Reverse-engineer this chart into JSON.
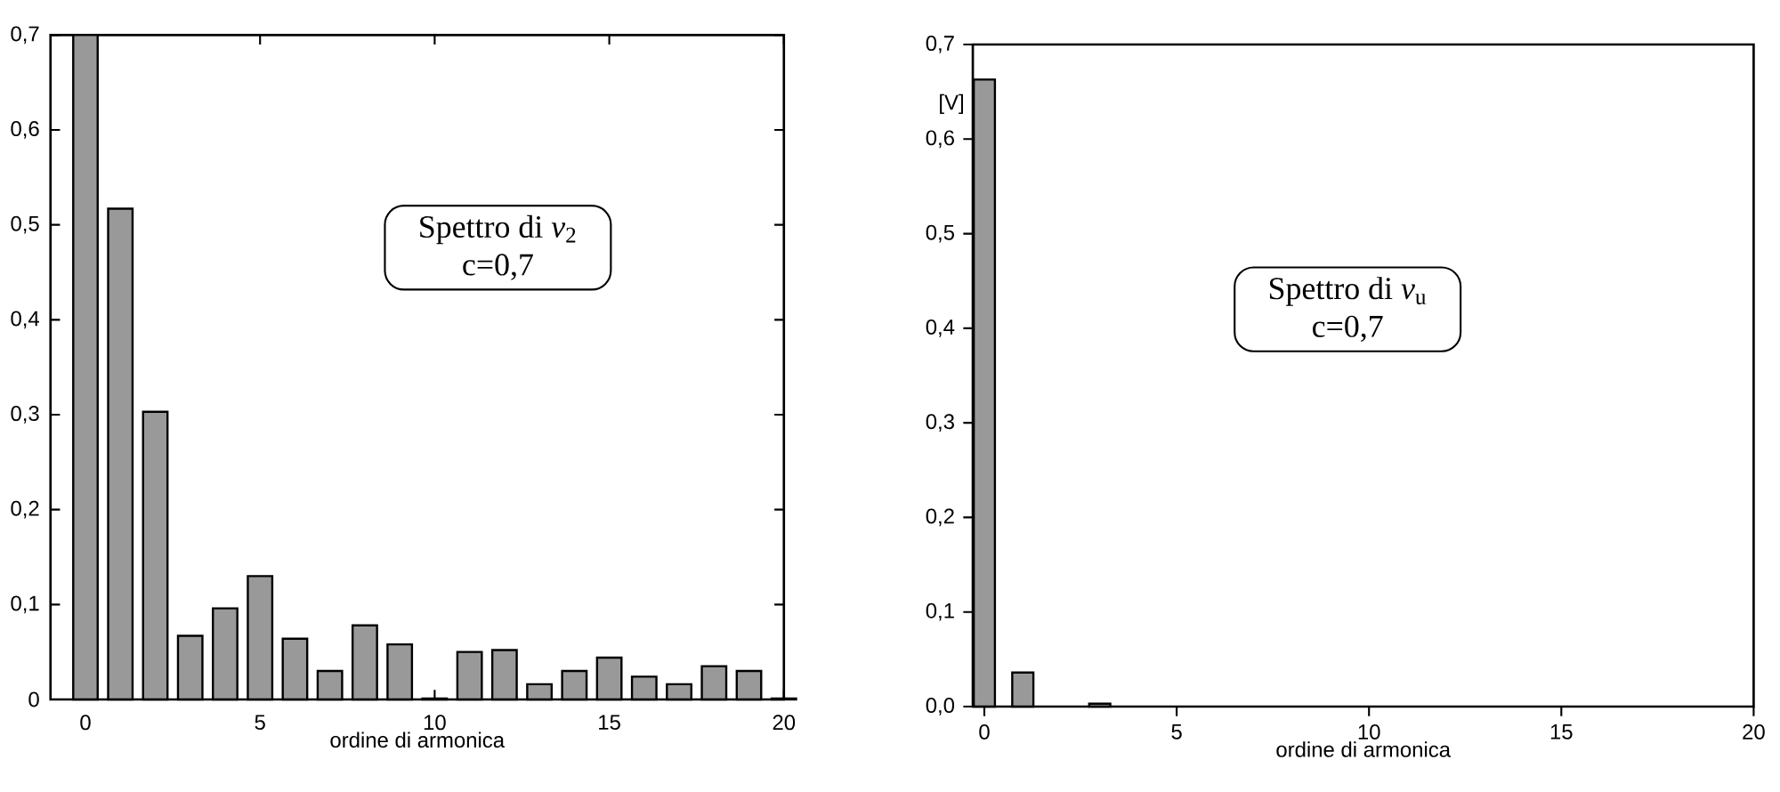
{
  "chart_data": [
    {
      "type": "bar",
      "x": [
        0,
        1,
        2,
        3,
        4,
        5,
        6,
        7,
        8,
        9,
        10,
        11,
        12,
        13,
        14,
        15,
        16,
        17,
        18,
        19,
        20
      ],
      "values": [
        0.7,
        0.517,
        0.303,
        0.067,
        0.096,
        0.13,
        0.064,
        0.03,
        0.078,
        0.058,
        0.001,
        0.05,
        0.052,
        0.016,
        0.03,
        0.044,
        0.024,
        0.016,
        0.035,
        0.03,
        0.001
      ],
      "color": "#999999",
      "xlim": [
        -1,
        20
      ],
      "ylim": [
        0,
        0.7
      ],
      "xticks": [
        0,
        5,
        10,
        15,
        20
      ],
      "yticks": [
        0,
        {
          "value": 0.1,
          "label": "0,1"
        },
        {
          "value": 0.2,
          "label": "0,2"
        },
        {
          "value": 0.3,
          "label": "0,3"
        },
        {
          "value": 0.4,
          "label": "0,4"
        },
        {
          "value": 0.5,
          "label": "0,5"
        },
        {
          "value": 0.6,
          "label": "0,6"
        },
        {
          "value": 0.7,
          "label": "0,7"
        }
      ],
      "xlabel": "ordine di armonica",
      "annotations": [
        "Spettro di *v*$_{2}$",
        "c=0,7"
      ]
    },
    {
      "type": "bar",
      "x": [
        0,
        1,
        3
      ],
      "values": [
        0.663,
        0.036,
        0.003
      ],
      "color": "#999999",
      "xlim": [
        -0.3,
        20
      ],
      "ylim": [
        0,
        0.7
      ],
      "xticks": [
        0,
        5,
        10,
        15,
        20
      ],
      "yticks": [
        {
          "value": 0,
          "label": "0,0"
        },
        {
          "value": 0.1,
          "label": "0,1"
        },
        {
          "value": 0.2,
          "label": "0,2"
        },
        {
          "value": 0.3,
          "label": "0,3"
        },
        {
          "value": 0.4,
          "label": "0,4"
        },
        {
          "value": 0.5,
          "label": "0,5"
        },
        {
          "value": 0.6,
          "label": "0,6"
        },
        {
          "value": 0.7,
          "label": "0,7"
        }
      ],
      "xlabel": "ordine di armonica",
      "ylabel": "[V]",
      "annotations": [
        "Spettro di *v*$_{u}$",
        "c=0,7"
      ]
    }
  ]
}
